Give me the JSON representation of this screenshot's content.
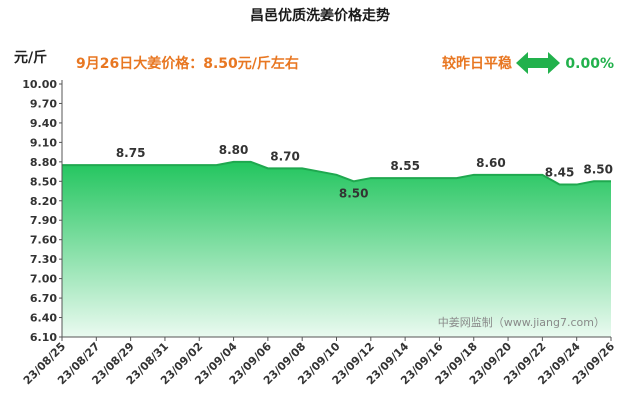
{
  "chart_data": {
    "type": "area",
    "title": "昌邑优质洗姜价格走势",
    "ylabel": "元/斤",
    "ylim": [
      6.1,
      10.0
    ],
    "yticks": [
      "10.00",
      "9.70",
      "9.40",
      "9.10",
      "8.80",
      "8.50",
      "8.20",
      "7.90",
      "7.60",
      "7.30",
      "7.00",
      "6.70",
      "6.40",
      "6.10"
    ],
    "xtick_labels": [
      "23/08/25",
      "23/08/27",
      "23/08/29",
      "23/08/31",
      "23/09/02",
      "23/09/04",
      "23/09/06",
      "23/09/08",
      "23/09/10",
      "23/09/12",
      "23/09/14",
      "23/09/16",
      "23/09/18",
      "23/09/20",
      "23/09/22",
      "23/09/24",
      "23/09/26"
    ],
    "dates": [
      "23/08/25",
      "23/08/26",
      "23/08/27",
      "23/08/28",
      "23/08/29",
      "23/08/30",
      "23/08/31",
      "23/09/01",
      "23/09/02",
      "23/09/03",
      "23/09/04",
      "23/09/05",
      "23/09/06",
      "23/09/07",
      "23/09/08",
      "23/09/09",
      "23/09/10",
      "23/09/11",
      "23/09/12",
      "23/09/13",
      "23/09/14",
      "23/09/15",
      "23/09/16",
      "23/09/17",
      "23/09/18",
      "23/09/19",
      "23/09/20",
      "23/09/21",
      "23/09/22",
      "23/09/23",
      "23/09/24",
      "23/09/25",
      "23/09/26"
    ],
    "values": [
      8.75,
      8.75,
      8.75,
      8.75,
      8.75,
      8.75,
      8.75,
      8.75,
      8.75,
      8.75,
      8.8,
      8.8,
      8.7,
      8.7,
      8.7,
      8.65,
      8.6,
      8.5,
      8.55,
      8.55,
      8.55,
      8.55,
      8.55,
      8.55,
      8.6,
      8.6,
      8.6,
      8.6,
      8.6,
      8.45,
      8.45,
      8.5,
      8.5
    ],
    "data_labels": [
      {
        "date": "23/08/29",
        "text": "8.75"
      },
      {
        "date": "23/09/04",
        "text": "8.80"
      },
      {
        "date": "23/09/07",
        "text": "8.70"
      },
      {
        "date": "23/09/11",
        "text": "8.50"
      },
      {
        "date": "23/09/14",
        "text": "8.55"
      },
      {
        "date": "23/09/19",
        "text": "8.60"
      },
      {
        "date": "23/09/23",
        "text": "8.45"
      },
      {
        "date": "23/09/26",
        "text": "8.50"
      }
    ],
    "grid": false,
    "fill_color_top": "#22c55e",
    "fill_color_bottom": "#eafaf0"
  },
  "info": {
    "price_text": "9月26日大姜价格：8.50元/斤左右",
    "compare_text": "较昨日平稳",
    "change_pct": "0.00%",
    "accent_color": "#e87722",
    "green_color": "#22b14c"
  },
  "watermark": "中姜网监制（www.jiang7.com）"
}
